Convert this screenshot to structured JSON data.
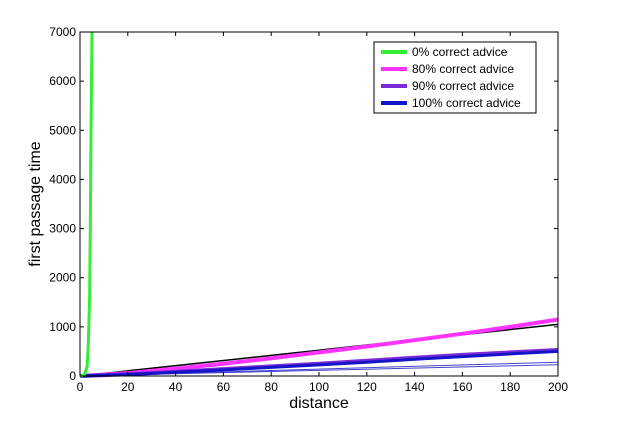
{
  "chart_data": {
    "type": "line",
    "xlabel": "distance",
    "ylabel": "first passage time",
    "xlim": [
      0,
      200
    ],
    "ylim": [
      0,
      7000
    ],
    "x_ticks": [
      0,
      20,
      40,
      60,
      80,
      100,
      120,
      140,
      160,
      180,
      200
    ],
    "y_ticks": [
      0,
      1000,
      2000,
      3000,
      4000,
      5000,
      6000,
      7000
    ],
    "grid": false,
    "legend_position": "top-right",
    "series": [
      {
        "name": "0% correct advice",
        "color": "#33ee33",
        "line_width": 3,
        "points": [
          [
            0,
            0
          ],
          [
            1,
            8
          ],
          [
            2,
            40
          ],
          [
            3,
            200
          ],
          [
            3.5,
            700
          ],
          [
            4,
            1600
          ],
          [
            4.3,
            3000
          ],
          [
            4.6,
            5000
          ],
          [
            5,
            7000
          ]
        ]
      },
      {
        "name": "80% correct advice",
        "color": "#ff33ff",
        "line_width": 4,
        "points": [
          [
            0,
            0
          ],
          [
            20,
            60
          ],
          [
            40,
            150
          ],
          [
            60,
            250
          ],
          [
            80,
            360
          ],
          [
            100,
            480
          ],
          [
            120,
            600
          ],
          [
            140,
            730
          ],
          [
            160,
            860
          ],
          [
            180,
            1000
          ],
          [
            200,
            1150
          ]
        ]
      },
      {
        "name": "90% correct advice",
        "color": "#7a2ad6",
        "line_width": 4,
        "points": [
          [
            0,
            0
          ],
          [
            20,
            35
          ],
          [
            40,
            85
          ],
          [
            60,
            140
          ],
          [
            80,
            195
          ],
          [
            100,
            250
          ],
          [
            120,
            310
          ],
          [
            140,
            370
          ],
          [
            160,
            430
          ],
          [
            180,
            480
          ],
          [
            200,
            530
          ]
        ]
      },
      {
        "name": "100% correct advice",
        "color": "#1414c8",
        "line_width": 3,
        "points": [
          [
            0,
            0
          ],
          [
            20,
            30
          ],
          [
            40,
            75
          ],
          [
            60,
            125
          ],
          [
            80,
            175
          ],
          [
            100,
            225
          ],
          [
            120,
            280
          ],
          [
            140,
            340
          ],
          [
            160,
            395
          ],
          [
            180,
            450
          ],
          [
            200,
            500
          ]
        ]
      }
    ],
    "reference_lines": [
      {
        "color": "#000000",
        "line_width": 1.5,
        "points": [
          [
            0,
            0
          ],
          [
            200,
            1050
          ]
        ]
      },
      {
        "color": "#000000",
        "line_width": 1.5,
        "points": [
          [
            0,
            0
          ],
          [
            200,
            510
          ]
        ]
      },
      {
        "color": "#4444cc",
        "line_width": 1,
        "points": [
          [
            0,
            0
          ],
          [
            200,
            280
          ]
        ]
      },
      {
        "color": "#4444cc",
        "line_width": 1,
        "points": [
          [
            0,
            0
          ],
          [
            200,
            230
          ]
        ]
      }
    ]
  }
}
